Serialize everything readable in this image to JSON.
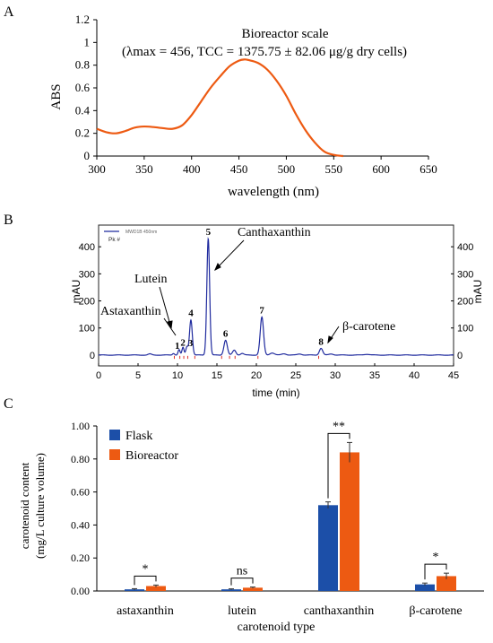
{
  "panels": {
    "a": "A",
    "b": "B",
    "c": "C"
  },
  "chart_data": [
    {
      "panel": "A",
      "type": "line",
      "title": "Bioreactor scale",
      "subtitle": "(λmax = 456, TCC = 1375.75 ± 82.06 μg/g dry cells)",
      "xlabel": "wavelength (nm)",
      "ylabel": "ABS",
      "xlim": [
        300,
        650
      ],
      "ylim": [
        0,
        1.2
      ],
      "xticks": [
        300,
        350,
        400,
        450,
        500,
        550,
        600,
        650
      ],
      "yticks": [
        0,
        0.2,
        0.4,
        0.6,
        0.8,
        1,
        1.2
      ],
      "x_tick_labels": [
        "300",
        "350",
        "400",
        "450",
        "500",
        "550",
        "600",
        "650"
      ],
      "y_tick_labels": [
        "0",
        "0.2",
        "0.4",
        "0.6",
        "0.8",
        "1",
        "1.2"
      ],
      "series_color": "#ED5A12",
      "x": [
        300,
        310,
        320,
        330,
        340,
        350,
        360,
        370,
        380,
        390,
        400,
        410,
        420,
        430,
        440,
        450,
        456,
        460,
        470,
        480,
        490,
        500,
        510,
        520,
        530,
        540,
        550,
        560
      ],
      "y": [
        0.24,
        0.21,
        0.2,
        0.22,
        0.25,
        0.26,
        0.255,
        0.245,
        0.24,
        0.27,
        0.36,
        0.48,
        0.6,
        0.7,
        0.79,
        0.84,
        0.85,
        0.845,
        0.82,
        0.76,
        0.66,
        0.53,
        0.37,
        0.23,
        0.12,
        0.04,
        0.01,
        0.0
      ]
    },
    {
      "panel": "B",
      "type": "line",
      "xlabel": "time (min)",
      "ylabel": "mAU",
      "ylabel_right": "mAU",
      "xlim": [
        0,
        45
      ],
      "ylim": [
        -40,
        480
      ],
      "xticks": [
        0,
        5,
        10,
        15,
        20,
        25,
        30,
        35,
        40,
        45
      ],
      "yticks": [
        0,
        100,
        200,
        300,
        400
      ],
      "x_tick_labels": [
        "0",
        "5",
        "10",
        "15",
        "20",
        "25",
        "30",
        "35",
        "40",
        "45"
      ],
      "y_tick_labels": [
        "0",
        "100",
        "200",
        "300",
        "400"
      ],
      "legend_line_text": "MWD1B 450nm",
      "legend_pk": "Pk #",
      "series_color": "#1F2A9E",
      "peak_mark_color": "#E0322C",
      "peaks": [
        {
          "num": "1",
          "t": 10.2,
          "h": 20,
          "w": 0.18
        },
        {
          "num": "2",
          "t": 10.7,
          "h": 28,
          "w": 0.18
        },
        {
          "num": "3",
          "t": 11.2,
          "h": 30,
          "w": 0.2
        },
        {
          "num": "4",
          "t": 11.7,
          "h": 130,
          "w": 0.25
        },
        {
          "num": "5",
          "t": 13.9,
          "h": 430,
          "w": 0.25
        },
        {
          "num": "6",
          "t": 16.1,
          "h": 55,
          "w": 0.3
        },
        {
          "num": "7",
          "t": 20.7,
          "h": 140,
          "w": 0.3
        },
        {
          "num": "8",
          "t": 28.2,
          "h": 25,
          "w": 0.3
        }
      ],
      "minor_peaks": [
        {
          "t": 6.5,
          "h": 4,
          "w": 0.3
        },
        {
          "t": 9.5,
          "h": 6,
          "w": 0.2
        },
        {
          "t": 17.2,
          "h": 18,
          "w": 0.3
        },
        {
          "t": 18.2,
          "h": 6,
          "w": 0.3
        },
        {
          "t": 22.0,
          "h": 8,
          "w": 0.4
        },
        {
          "t": 23.5,
          "h": 5,
          "w": 0.4
        },
        {
          "t": 25.5,
          "h": 4,
          "w": 0.4
        },
        {
          "t": 29.5,
          "h": 4,
          "w": 0.4
        },
        {
          "t": 34.0,
          "h": 3,
          "w": 0.5
        }
      ],
      "peak_marks_t": [
        9.6,
        10.3,
        10.8,
        11.3,
        12.2,
        15.6,
        16.6,
        17.3,
        20.2,
        27.9
      ],
      "annotations": [
        {
          "label": "Canthaxanthin",
          "peak": "5"
        },
        {
          "label": "Lutein",
          "peak": "4"
        },
        {
          "label": "Astaxanthin",
          "peak": "1"
        },
        {
          "label": "β-carotene",
          "peak": "8"
        }
      ]
    },
    {
      "panel": "C",
      "type": "bar",
      "xlabel": "carotenoid type",
      "ylabel": "carotenoid content",
      "ylabel2": "(mg/L culture volume)",
      "ylim": [
        0,
        1.0
      ],
      "yticks": [
        0,
        0.2,
        0.4,
        0.6,
        0.8,
        1.0
      ],
      "y_tick_labels": [
        "0.00",
        "0.20",
        "0.40",
        "0.60",
        "0.80",
        "1.00"
      ],
      "categories": [
        "astaxanthin",
        "lutein",
        "canthaxanthin",
        "β-carotene"
      ],
      "series": [
        {
          "name": "Flask",
          "color": "#1C4FA8",
          "values": [
            0.01,
            0.01,
            0.52,
            0.04
          ],
          "errors": [
            0.004,
            0.003,
            0.02,
            0.008
          ]
        },
        {
          "name": "Bioreactor",
          "color": "#ED5A12",
          "values": [
            0.03,
            0.02,
            0.84,
            0.09
          ],
          "errors": [
            0.006,
            0.004,
            0.06,
            0.018
          ]
        }
      ],
      "significance": [
        "*",
        "ns",
        "**",
        "*"
      ]
    }
  ]
}
